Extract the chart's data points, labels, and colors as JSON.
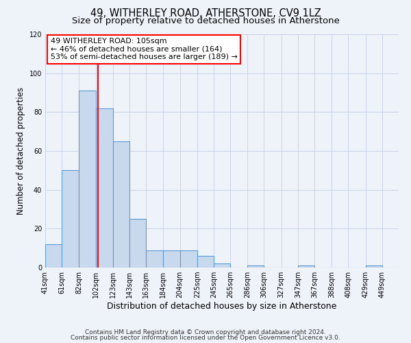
{
  "title": "49, WITHERLEY ROAD, ATHERSTONE, CV9 1LZ",
  "subtitle": "Size of property relative to detached houses in Atherstone",
  "xlabel": "Distribution of detached houses by size in Atherstone",
  "ylabel": "Number of detached properties",
  "bin_labels": [
    "41sqm",
    "61sqm",
    "82sqm",
    "102sqm",
    "123sqm",
    "143sqm",
    "163sqm",
    "184sqm",
    "204sqm",
    "225sqm",
    "245sqm",
    "265sqm",
    "286sqm",
    "306sqm",
    "327sqm",
    "347sqm",
    "367sqm",
    "388sqm",
    "408sqm",
    "429sqm",
    "449sqm"
  ],
  "bin_edges": [
    41,
    61,
    82,
    102,
    123,
    143,
    163,
    184,
    204,
    225,
    245,
    265,
    286,
    306,
    327,
    347,
    367,
    388,
    408,
    429,
    449
  ],
  "bar_heights": [
    12,
    50,
    91,
    82,
    65,
    25,
    9,
    9,
    9,
    6,
    2,
    0,
    1,
    0,
    0,
    1,
    0,
    0,
    0,
    1,
    0
  ],
  "bar_color": "#c9d9ed",
  "bar_edge_color": "#5b9bd5",
  "vline_x": 105,
  "vline_color": "red",
  "annotation_title": "49 WITHERLEY ROAD: 105sqm",
  "annotation_line1": "← 46% of detached houses are smaller (164)",
  "annotation_line2": "53% of semi-detached houses are larger (189) →",
  "annotation_box_color": "white",
  "annotation_box_edgecolor": "red",
  "ylim": [
    0,
    120
  ],
  "yticks": [
    0,
    20,
    40,
    60,
    80,
    100,
    120
  ],
  "footer1": "Contains HM Land Registry data © Crown copyright and database right 2024.",
  "footer2": "Contains public sector information licensed under the Open Government Licence v3.0.",
  "bg_color": "#eef2f9",
  "plot_bg_color": "#eef2f9",
  "grid_color": "#c8d4e8",
  "title_fontsize": 10.5,
  "subtitle_fontsize": 9.5,
  "xlabel_fontsize": 9,
  "ylabel_fontsize": 8.5,
  "tick_fontsize": 7,
  "footer_fontsize": 6.5,
  "annotation_fontsize": 8
}
